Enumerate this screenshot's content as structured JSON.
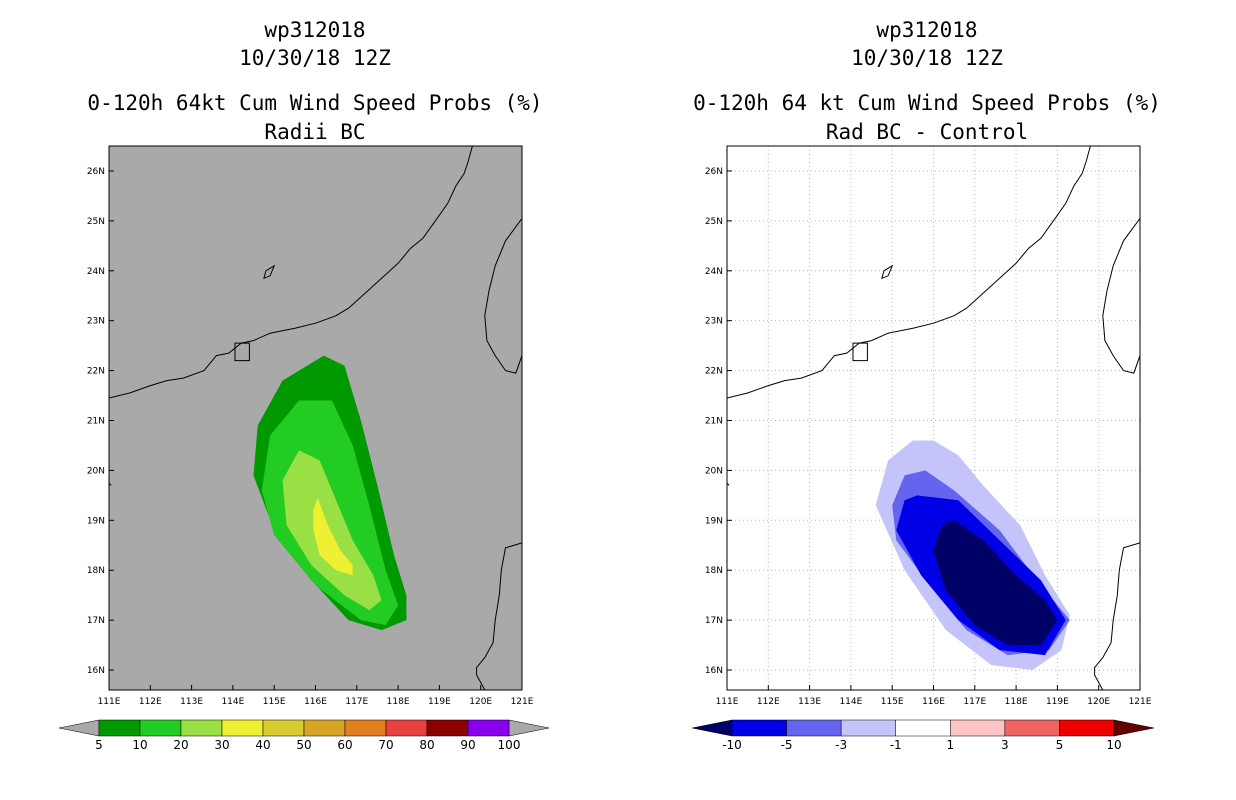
{
  "chart_data": [
    {
      "type": "heatmap",
      "storm_id": "wp312018",
      "datetime": "10/30/18 12Z",
      "title": "0-120h 64kt Cum Wind Speed Probs (%)",
      "subtitle": "Radii BC",
      "xlabel": "",
      "ylabel": "",
      "xlim": [
        111,
        121
      ],
      "ylim": [
        15.6,
        26.5
      ],
      "x_ticks": [
        "111E",
        "112E",
        "113E",
        "114E",
        "115E",
        "116E",
        "117E",
        "118E",
        "119E",
        "120E",
        "121E"
      ],
      "y_ticks": [
        "16N",
        "17N",
        "18N",
        "19N",
        "20N",
        "21N",
        "22N",
        "23N",
        "24N",
        "25N",
        "26N"
      ],
      "grid": false,
      "background_color": "#a9a9a9",
      "colorbar": {
        "levels": [
          "5",
          "10",
          "20",
          "30",
          "40",
          "50",
          "60",
          "70",
          "80",
          "90",
          "100"
        ],
        "colors": [
          "#009900",
          "#22cc22",
          "#99e044",
          "#f0f032",
          "#d8cc30",
          "#d8a428",
          "#e0801e",
          "#e64040",
          "#8b0000",
          "#8a00ee"
        ],
        "extend_colors": [
          "#a9a9a9",
          "#a9a9a9"
        ]
      },
      "contour_regions": [
        {
          "level": "5-10",
          "color": "#009900",
          "polygon": [
            [
              116.2,
              22.3
            ],
            [
              116.7,
              22.1
            ],
            [
              117.1,
              21.0
            ],
            [
              117.5,
              19.7
            ],
            [
              117.9,
              18.3
            ],
            [
              118.2,
              17.5
            ],
            [
              118.2,
              17.0
            ],
            [
              117.6,
              16.8
            ],
            [
              116.8,
              17.0
            ],
            [
              115.9,
              17.8
            ],
            [
              115.0,
              18.8
            ],
            [
              114.5,
              19.9
            ],
            [
              114.6,
              20.9
            ],
            [
              115.2,
              21.8
            ]
          ]
        },
        {
          "level": "10-20",
          "color": "#22cc22",
          "polygon": [
            [
              115.6,
              21.4
            ],
            [
              116.4,
              21.4
            ],
            [
              116.9,
              20.5
            ],
            [
              117.3,
              19.3
            ],
            [
              117.7,
              18.0
            ],
            [
              118.0,
              17.3
            ],
            [
              117.7,
              16.9
            ],
            [
              117.1,
              17.0
            ],
            [
              116.0,
              17.7
            ],
            [
              115.0,
              18.7
            ],
            [
              114.7,
              19.6
            ],
            [
              114.9,
              20.7
            ]
          ]
        },
        {
          "level": "20-30",
          "color": "#99e044",
          "polygon": [
            [
              115.6,
              20.4
            ],
            [
              116.1,
              20.2
            ],
            [
              116.5,
              19.4
            ],
            [
              116.9,
              18.6
            ],
            [
              117.4,
              17.9
            ],
            [
              117.6,
              17.4
            ],
            [
              117.3,
              17.2
            ],
            [
              116.7,
              17.5
            ],
            [
              115.9,
              18.1
            ],
            [
              115.3,
              18.9
            ],
            [
              115.2,
              19.8
            ]
          ]
        },
        {
          "level": "30-40",
          "color": "#f0f032",
          "polygon": [
            [
              116.05,
              19.45
            ],
            [
              116.3,
              18.9
            ],
            [
              116.6,
              18.4
            ],
            [
              116.9,
              18.1
            ],
            [
              116.9,
              17.9
            ],
            [
              116.5,
              18.0
            ],
            [
              116.1,
              18.3
            ],
            [
              115.95,
              18.8
            ],
            [
              115.95,
              19.2
            ]
          ]
        }
      ],
      "annotations": [
        "Hong Kong inset box near 22.3N 114.2E",
        "coastline of southern China and Taiwan"
      ]
    },
    {
      "type": "heatmap",
      "storm_id": "wp312018",
      "datetime": "10/30/18 12Z",
      "title": "0-120h 64 kt Cum Wind Speed Probs (%)",
      "subtitle": "Rad BC - Control",
      "xlabel": "",
      "ylabel": "",
      "xlim": [
        111,
        121
      ],
      "ylim": [
        15.6,
        26.5
      ],
      "x_ticks": [
        "111E",
        "112E",
        "113E",
        "114E",
        "115E",
        "116E",
        "117E",
        "118E",
        "119E",
        "120E",
        "121E"
      ],
      "y_ticks": [
        "16N",
        "17N",
        "18N",
        "19N",
        "20N",
        "21N",
        "22N",
        "23N",
        "24N",
        "25N",
        "26N"
      ],
      "grid": true,
      "background_color": "#ffffff",
      "colorbar": {
        "levels": [
          "-10",
          "-5",
          "-3",
          "-1",
          "1",
          "3",
          "5",
          "10"
        ],
        "colors": [
          "#0000e6",
          "#6464ee",
          "#c4c4fa",
          "#ffffff",
          "#fcc4c4",
          "#f06464",
          "#ee0000"
        ],
        "extend_colors": [
          "#000066",
          "#660000"
        ]
      },
      "contour_regions": [
        {
          "level": "-1 to -3",
          "color": "#c4c4fa",
          "polygon": [
            [
              116.0,
              20.6
            ],
            [
              116.6,
              20.3
            ],
            [
              117.2,
              19.7
            ],
            [
              118.1,
              18.9
            ],
            [
              118.7,
              17.9
            ],
            [
              119.3,
              17.1
            ],
            [
              119.1,
              16.4
            ],
            [
              118.4,
              16.0
            ],
            [
              117.4,
              16.1
            ],
            [
              116.3,
              16.8
            ],
            [
              115.3,
              18.0
            ],
            [
              114.6,
              19.3
            ],
            [
              114.9,
              20.2
            ],
            [
              115.5,
              20.6
            ]
          ]
        },
        {
          "level": "-3 to -5",
          "color": "#6464ee",
          "polygon": [
            [
              115.8,
              20.0
            ],
            [
              116.5,
              19.6
            ],
            [
              117.6,
              18.8
            ],
            [
              118.5,
              17.8
            ],
            [
              119.3,
              17.0
            ],
            [
              118.8,
              16.4
            ],
            [
              117.8,
              16.3
            ],
            [
              116.8,
              16.8
            ],
            [
              115.9,
              17.7
            ],
            [
              115.1,
              18.6
            ],
            [
              115.0,
              19.3
            ],
            [
              115.3,
              19.9
            ]
          ]
        },
        {
          "level": "-5 to -10",
          "color": "#0000e6",
          "polygon": [
            [
              115.6,
              19.5
            ],
            [
              116.6,
              19.4
            ],
            [
              117.6,
              18.6
            ],
            [
              118.6,
              17.8
            ],
            [
              119.2,
              17.0
            ],
            [
              118.7,
              16.3
            ],
            [
              117.6,
              16.4
            ],
            [
              116.6,
              17.0
            ],
            [
              115.7,
              17.9
            ],
            [
              115.1,
              18.8
            ],
            [
              115.3,
              19.4
            ]
          ]
        },
        {
          "level": "< -10",
          "color": "#000066",
          "polygon": [
            [
              116.5,
              19.0
            ],
            [
              117.2,
              18.6
            ],
            [
              118.0,
              17.9
            ],
            [
              118.7,
              17.4
            ],
            [
              119.0,
              17.0
            ],
            [
              118.6,
              16.5
            ],
            [
              117.8,
              16.5
            ],
            [
              117.0,
              16.9
            ],
            [
              116.3,
              17.6
            ],
            [
              116.0,
              18.4
            ],
            [
              116.2,
              18.9
            ]
          ]
        }
      ],
      "annotations": [
        "Hong Kong inset box near 22.3N 114.2E",
        "coastline of southern China and Taiwan"
      ]
    }
  ]
}
